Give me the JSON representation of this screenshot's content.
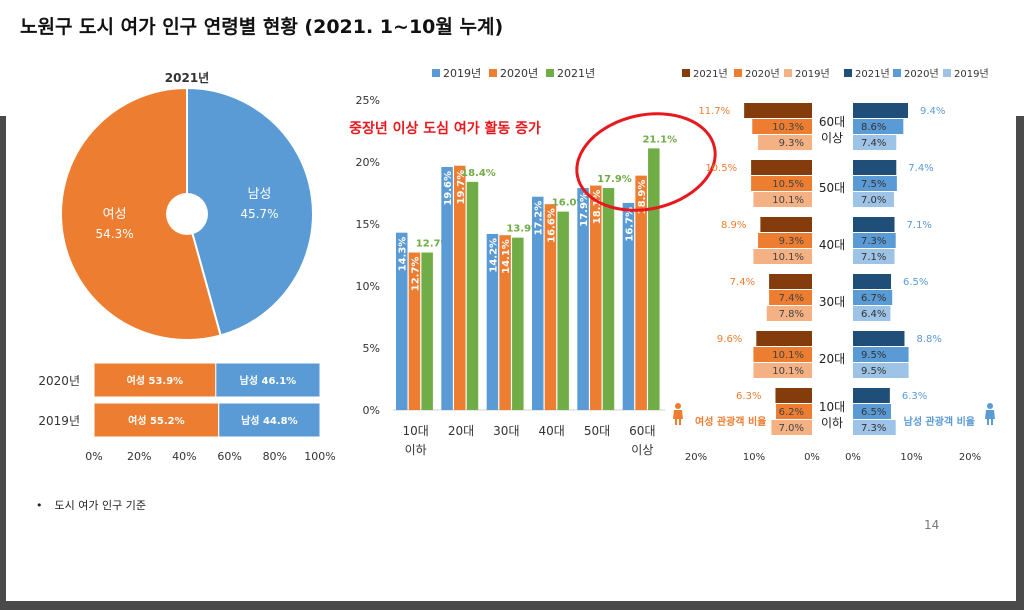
{
  "slide": {
    "title": "노원구 도시 여가 인구 연령별 현황 (2021. 1~10월 누계)",
    "footnote_bullet": "•",
    "footnote": "도시 여가 인구 기준",
    "page_number": "14"
  },
  "colors": {
    "orange": "#ED7D31",
    "blue": "#5B9BD5",
    "green": "#70AD47",
    "red_text": "#E8191E",
    "dark_brown": "#843C0C",
    "light_orange": "#F4B183",
    "dark_blue": "#1F4E79",
    "light_blue": "#9DC3E6"
  },
  "chart_data": [
    {
      "id": "pie-2021",
      "type": "pie",
      "title": "2021년",
      "style": "doughnut",
      "slices": [
        {
          "label": "남성",
          "value": 45.7,
          "value_text": "45.7%",
          "color": "#5B9BD5"
        },
        {
          "label": "여성",
          "value": 54.3,
          "value_text": "54.3%",
          "color": "#ED7D31"
        }
      ]
    },
    {
      "id": "stacked-2020-2019",
      "type": "bar",
      "orientation": "horizontal",
      "stacked_percent": true,
      "categories": [
        "2020년",
        "2019년"
      ],
      "series": [
        {
          "name": "여성",
          "values": [
            53.9,
            55.2
          ],
          "labels": [
            "여성 53.9%",
            "여성 55.2%"
          ],
          "color": "#ED7D31"
        },
        {
          "name": "남성",
          "values": [
            46.1,
            44.8
          ],
          "labels": [
            "남성 46.1%",
            "남성 44.8%"
          ],
          "color": "#5B9BD5"
        }
      ],
      "xlim": [
        0,
        100
      ],
      "xticks": [
        "0%",
        "20%",
        "40%",
        "60%",
        "80%",
        "100%"
      ]
    },
    {
      "id": "age-bars",
      "type": "bar",
      "categories": [
        [
          "10대",
          "이하"
        ],
        [
          "20대"
        ],
        [
          "30대"
        ],
        [
          "40대"
        ],
        [
          "50대"
        ],
        [
          "60대",
          "이상"
        ]
      ],
      "series": [
        {
          "name": "2019년",
          "values": [
            14.3,
            19.6,
            14.2,
            17.2,
            17.9,
            16.7
          ],
          "labels": [
            "14.3%",
            "19.6%",
            "14.2%",
            "17.2%",
            "17.9%",
            "16.7%"
          ],
          "color": "#5B9BD5"
        },
        {
          "name": "2020년",
          "values": [
            12.7,
            19.7,
            14.1,
            16.6,
            18.1,
            18.9
          ],
          "labels": [
            "12.7%",
            "19.7%",
            "14.1%",
            "16.6%",
            "18.1%",
            "18.9%"
          ],
          "color": "#ED7D31"
        },
        {
          "name": "2021년",
          "values": [
            12.7,
            18.4,
            13.9,
            16.0,
            17.9,
            21.1
          ],
          "labels": [
            "12.7%",
            "18.4%",
            "13.9%",
            "16.0%",
            "17.9%",
            "21.1%"
          ],
          "color": "#70AD47"
        }
      ],
      "ylim": [
        0,
        25
      ],
      "yticks": [
        "0%",
        "5%",
        "10%",
        "15%",
        "20%",
        "25%"
      ],
      "annotation": "중장년 이상 도심 여가 활동 증가"
    },
    {
      "id": "tourist-butterfly",
      "type": "bar",
      "orientation": "horizontal",
      "categories": [
        [
          "60대",
          "이상"
        ],
        [
          "50대"
        ],
        [
          "40대"
        ],
        [
          "30대"
        ],
        [
          "20대"
        ],
        [
          "10대",
          "이하"
        ]
      ],
      "female": {
        "title": "여성 관광객 비율",
        "series": [
          {
            "name": "2021년",
            "values": [
              11.7,
              10.5,
              8.9,
              7.4,
              9.6,
              6.3
            ],
            "labels": [
              "11.7%",
              "10.5%",
              "8.9%",
              "7.4%",
              "9.6%",
              "6.3%"
            ],
            "color": "#843C0C"
          },
          {
            "name": "2020년",
            "values": [
              10.3,
              10.5,
              9.3,
              7.4,
              10.1,
              6.2
            ],
            "labels": [
              "10.3%",
              "10.5%",
              "9.3%",
              "7.4%",
              "10.1%",
              "6.2%"
            ],
            "color": "#ED7D31"
          },
          {
            "name": "2019년",
            "values": [
              9.3,
              10.1,
              10.1,
              7.8,
              10.1,
              7.0
            ],
            "labels": [
              "9.3%",
              "10.1%",
              "10.1%",
              "7.8%",
              "10.1%",
              "7.0%"
            ],
            "color": "#F4B183"
          }
        ],
        "xlim": [
          20,
          0
        ],
        "xticks": [
          "20%",
          "10%",
          "0%"
        ]
      },
      "male": {
        "title": "남성 관광객 비율",
        "series": [
          {
            "name": "2021년",
            "values": [
              9.4,
              7.4,
              7.1,
              6.5,
              8.8,
              6.3
            ],
            "labels": [
              "9.4%",
              "7.4%",
              "7.1%",
              "6.5%",
              "8.8%",
              "6.3%"
            ],
            "color": "#1F4E79"
          },
          {
            "name": "2020년",
            "values": [
              8.6,
              7.5,
              7.3,
              6.7,
              9.5,
              6.5
            ],
            "labels": [
              "8.6%",
              "7.5%",
              "7.3%",
              "6.7%",
              "9.5%",
              "6.5%"
            ],
            "color": "#5B9BD5"
          },
          {
            "name": "2019년",
            "values": [
              7.4,
              7.0,
              7.1,
              6.4,
              9.5,
              7.3
            ],
            "labels": [
              "7.4%",
              "7.0%",
              "7.1%",
              "6.4%",
              "9.5%",
              "7.3%"
            ],
            "color": "#9DC3E6"
          }
        ],
        "xlim": [
          0,
          20
        ],
        "xticks": [
          "0%",
          "10%",
          "20%"
        ]
      }
    }
  ]
}
